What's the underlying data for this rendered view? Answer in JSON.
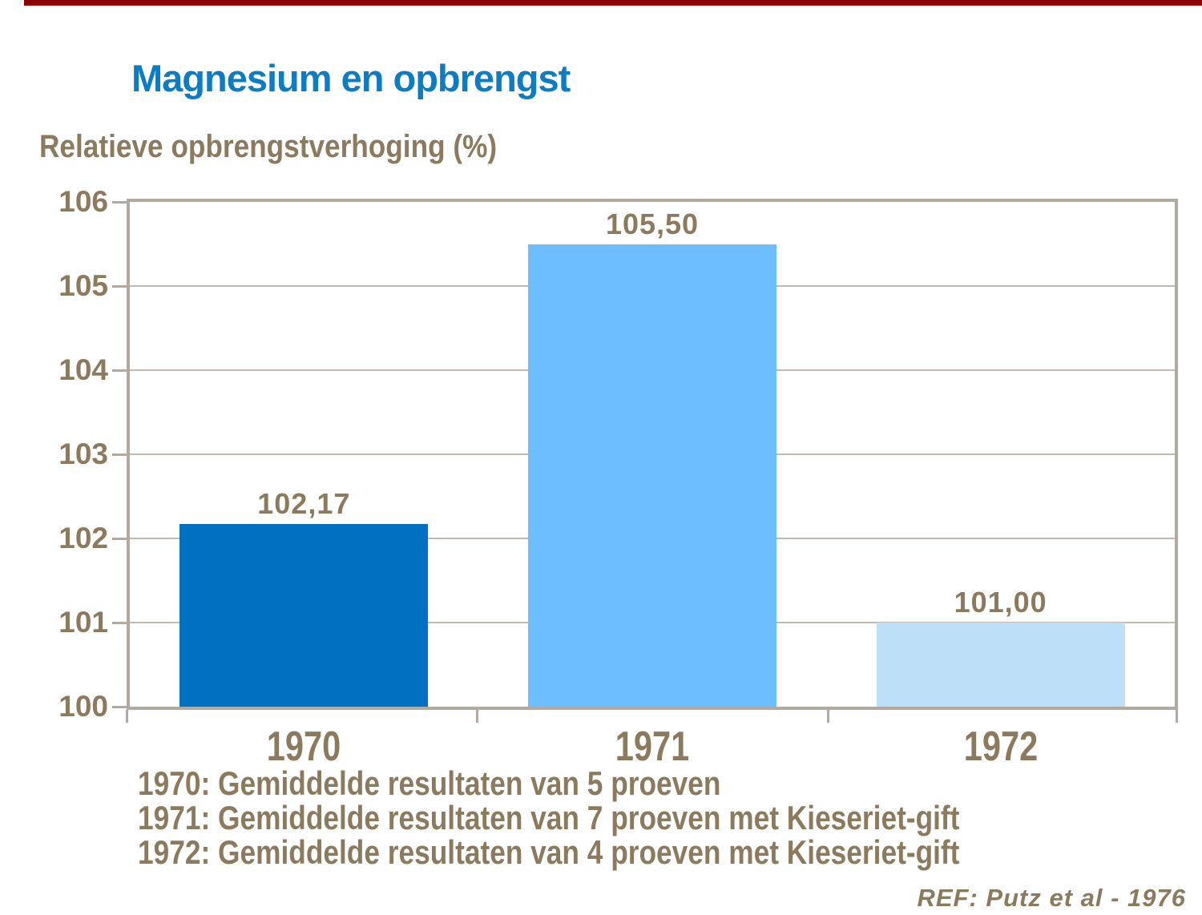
{
  "page": {
    "title": "Magnesium en opbrengst",
    "subtitle": "Relatieve opbrengstverhoging (%)",
    "reference": "REF: Putz et al - 1976"
  },
  "colors": {
    "accent_strip": "#8B0000",
    "title_blue": "#0E7CC1",
    "text_brown": "#8C7A5E",
    "axis": "#B2AAA0",
    "gridline": "#C2BAB0"
  },
  "chart_data": {
    "type": "bar",
    "title": "Magnesium en opbrengst",
    "ylabel": "Relatieve opbrengstverhoging (%)",
    "xlabel": "",
    "categories": [
      "1970",
      "1971",
      "1972"
    ],
    "values": [
      102.17,
      105.5,
      101.0
    ],
    "value_labels": [
      "102,17",
      "105,50",
      "101,00"
    ],
    "bar_colors": [
      "#0070C0",
      "#6CBEFF",
      "#BDDFF8"
    ],
    "ylim": [
      100,
      106
    ],
    "yticks": [
      100,
      101,
      102,
      103,
      104,
      105,
      106
    ],
    "grid": true,
    "legend": false,
    "footnotes": [
      "1970: Gemiddelde resultaten van 5 proeven",
      "1971: Gemiddelde resultaten van 7 proeven met Kieseriet-gift",
      "1972: Gemiddelde resultaten van 4 proeven met Kieseriet-gift"
    ]
  }
}
